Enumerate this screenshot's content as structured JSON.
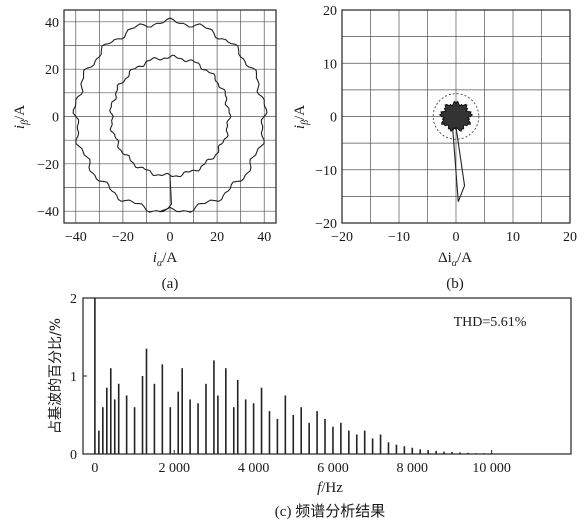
{
  "chart_data": [
    {
      "type": "line",
      "panel_label": "(a)",
      "xlabel": "i_α/A",
      "xlabel_main": "i",
      "xlabel_sub": "α",
      "xlabel_unit": "/A",
      "ylabel": "i_β/A",
      "ylabel_main": "i",
      "ylabel_sub": "β",
      "ylabel_unit": "/A",
      "xlim": [
        -45,
        45
      ],
      "ylim": [
        -45,
        45
      ],
      "xticks": [
        -40,
        -20,
        0,
        20,
        40
      ],
      "yticks": [
        -40,
        -20,
        0,
        20,
        40
      ],
      "xtick_labels": [
        "−40",
        "−20",
        "0",
        "20",
        "40"
      ],
      "ytick_labels": [
        "−40",
        "−20",
        "0",
        "20",
        "40"
      ],
      "grid": true,
      "series": [
        {
          "shape": "circle",
          "center": [
            0,
            0
          ],
          "radius": 40
        },
        {
          "shape": "circle",
          "center": [
            0,
            0
          ],
          "radius": 25
        }
      ]
    },
    {
      "type": "scatter",
      "panel_label": "(b)",
      "xlabel": "Δi_α/A",
      "xlabel_main": "Δi",
      "xlabel_sub": "α",
      "xlabel_unit": "/A",
      "ylabel": "i_β/A",
      "ylabel_main": "i",
      "ylabel_sub": "β",
      "ylabel_unit": "/A",
      "xlim": [
        -20,
        20
      ],
      "ylim": [
        -20,
        20
      ],
      "xticks": [
        -20,
        -10,
        0,
        10,
        20
      ],
      "yticks": [
        -20,
        -10,
        0,
        10,
        20
      ],
      "xtick_labels": [
        "−20",
        "−10",
        "0",
        "10",
        "20"
      ],
      "ytick_labels": [
        "−20",
        "−10",
        "0",
        "10",
        "20"
      ],
      "grid": true,
      "series": [
        {
          "shape": "cluster",
          "center": [
            0,
            0
          ],
          "radius": 2.5
        },
        {
          "shape": "dashed-circle",
          "center": [
            0,
            0
          ],
          "radius": 4
        },
        {
          "shape": "transient",
          "points": [
            [
              0,
              -2
            ],
            [
              1.5,
              -13
            ],
            [
              0.4,
              -16
            ],
            [
              -0.6,
              -2
            ]
          ]
        }
      ]
    },
    {
      "type": "bar",
      "panel_label": "(c) 频谱分析结果",
      "annotation": "THD=5.61%",
      "xlabel": "f/Hz",
      "xlabel_main": "f",
      "xlabel_unit": "/Hz",
      "ylabel": "占基波的百分比/%",
      "xlim": [
        -300,
        12000
      ],
      "ylim": [
        0,
        2
      ],
      "xticks": [
        0,
        2000,
        4000,
        6000,
        8000,
        10000
      ],
      "xtick_labels": [
        "0",
        "2 000",
        "4 000",
        "6 000",
        "8 000",
        "10 000"
      ],
      "yticks": [
        0,
        1,
        2
      ],
      "ytick_labels": [
        "0",
        "1",
        "2"
      ],
      "grid": false,
      "x": [
        0,
        100,
        200,
        300,
        400,
        500,
        600,
        800,
        1000,
        1200,
        1300,
        1500,
        1700,
        1900,
        2100,
        2200,
        2400,
        2600,
        2800,
        3000,
        3100,
        3300,
        3500,
        3600,
        3800,
        4000,
        4200,
        4400,
        4600,
        4800,
        5000,
        5200,
        5400,
        5600,
        5800,
        6000,
        6200,
        6400,
        6600,
        6800,
        7000,
        7200,
        7400,
        7600,
        7800,
        8000,
        8200,
        8400,
        8600,
        8800,
        9000,
        9200,
        9400,
        9600,
        9800,
        10000
      ],
      "values": [
        2.0,
        0.3,
        0.6,
        0.85,
        1.1,
        0.7,
        0.9,
        0.75,
        0.6,
        1.0,
        1.35,
        0.9,
        1.15,
        0.6,
        0.8,
        1.1,
        0.7,
        0.65,
        0.9,
        1.2,
        0.75,
        1.1,
        0.6,
        0.95,
        0.7,
        0.65,
        0.85,
        0.55,
        0.45,
        0.75,
        0.5,
        0.6,
        0.4,
        0.55,
        0.45,
        0.35,
        0.4,
        0.3,
        0.25,
        0.3,
        0.2,
        0.25,
        0.15,
        0.12,
        0.1,
        0.08,
        0.06,
        0.05,
        0.04,
        0.03,
        0.025,
        0.02,
        0.015,
        0.01,
        0.01,
        0.01
      ]
    }
  ]
}
